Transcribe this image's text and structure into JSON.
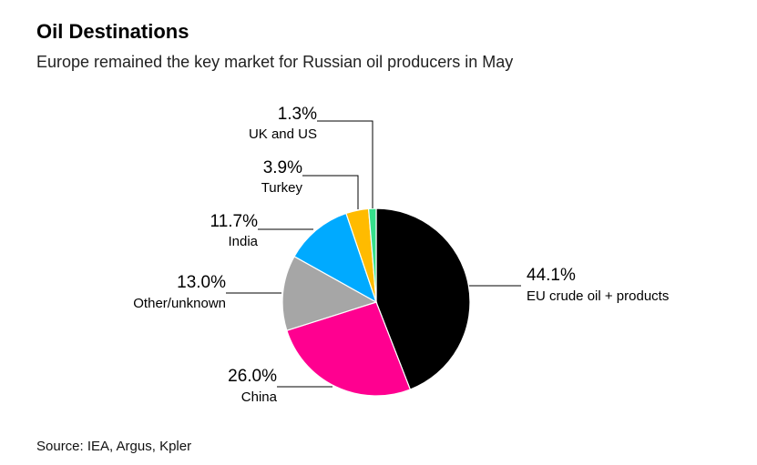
{
  "title": "Oil Destinations",
  "subtitle": "Europe remained the key market for Russian oil producers in May",
  "source": "Source: IEA, Argus, Kpler",
  "chart_data": {
    "type": "pie",
    "title": "Oil Destinations",
    "subtitle": "Europe remained the key market for Russian oil producers in May",
    "slices": [
      {
        "label": "EU crude oil + products",
        "value": 44.1,
        "value_label": "44.1%",
        "color": "#000000"
      },
      {
        "label": "China",
        "value": 26.0,
        "value_label": "26.0%",
        "color": "#ff0090"
      },
      {
        "label": "Other/unknown",
        "value": 13.0,
        "value_label": "13.0%",
        "color": "#a6a6a6"
      },
      {
        "label": "India",
        "value": 11.7,
        "value_label": "11.7%",
        "color": "#00aaff"
      },
      {
        "label": "Turkey",
        "value": 3.9,
        "value_label": "3.9%",
        "color": "#ffbb00"
      },
      {
        "label": "UK and US",
        "value": 1.3,
        "value_label": "1.3%",
        "color": "#35e08b"
      }
    ],
    "start_angle_deg": 0,
    "direction": "clockwise",
    "legend": "none"
  }
}
